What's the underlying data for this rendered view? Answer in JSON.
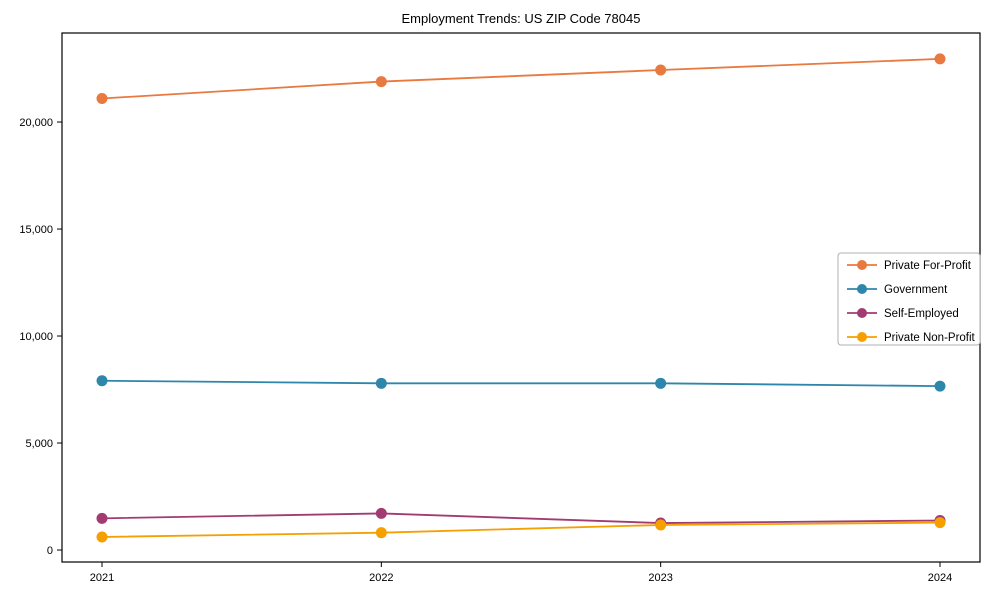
{
  "chart_data": {
    "type": "line",
    "title": "Employment Trends: US ZIP Code 78045",
    "categories": [
      "2021",
      "2022",
      "2023",
      "2024"
    ],
    "series": [
      {
        "name": "Private For-Profit",
        "color": "#E8793F",
        "values": [
          21100,
          21890,
          22430,
          22950
        ]
      },
      {
        "name": "Government",
        "color": "#2E86AB",
        "values": [
          7910,
          7790,
          7790,
          7660
        ]
      },
      {
        "name": "Self-Employed",
        "color": "#A23B72",
        "values": [
          1480,
          1710,
          1260,
          1380
        ]
      },
      {
        "name": "Private Non-Profit",
        "color": "#F5A000",
        "values": [
          610,
          810,
          1170,
          1280
        ]
      }
    ],
    "xlabel": "",
    "ylabel": "",
    "ylim": [
      -560,
      24160
    ],
    "yticks": [
      0,
      5000,
      10000,
      15000,
      20000
    ],
    "ytick_labels": [
      "0",
      "5,000",
      "10,000",
      "15,000",
      "20,000"
    ],
    "legend_position": "center right",
    "grid": false,
    "marker": "circle",
    "axis_color": "#000000",
    "background_color": "#ffffff"
  }
}
